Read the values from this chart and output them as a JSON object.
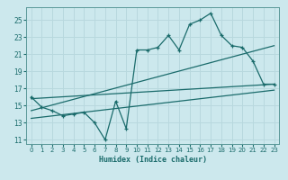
{
  "xlabel": "Humidex (Indice chaleur)",
  "bg_color": "#cce8ed",
  "grid_color": "#b8d8de",
  "line_color": "#1a6b6b",
  "xlim": [
    -0.5,
    23.5
  ],
  "ylim": [
    10.5,
    26.5
  ],
  "yticks": [
    11,
    13,
    15,
    17,
    19,
    21,
    23,
    25
  ],
  "xticks": [
    0,
    1,
    2,
    3,
    4,
    5,
    6,
    7,
    8,
    9,
    10,
    11,
    12,
    13,
    14,
    15,
    16,
    17,
    18,
    19,
    20,
    21,
    22,
    23
  ],
  "series1_x": [
    0,
    1,
    2,
    3,
    4,
    5,
    6,
    7,
    8,
    9,
    10,
    11,
    12,
    13,
    14,
    15,
    16,
    17,
    18,
    19,
    20,
    21,
    22,
    23
  ],
  "series1_y": [
    16.0,
    14.8,
    14.4,
    13.8,
    14.0,
    14.2,
    13.0,
    11.0,
    15.5,
    12.3,
    21.5,
    21.5,
    21.8,
    23.2,
    21.5,
    24.5,
    25.0,
    25.8,
    23.2,
    22.0,
    21.8,
    20.2,
    17.5,
    17.5
  ],
  "series2_x": [
    0,
    23
  ],
  "series2_y": [
    15.8,
    17.5
  ],
  "series3_x": [
    0,
    23
  ],
  "series3_y": [
    14.4,
    22.0
  ],
  "series4_x": [
    0,
    23
  ],
  "series4_y": [
    13.5,
    16.8
  ]
}
